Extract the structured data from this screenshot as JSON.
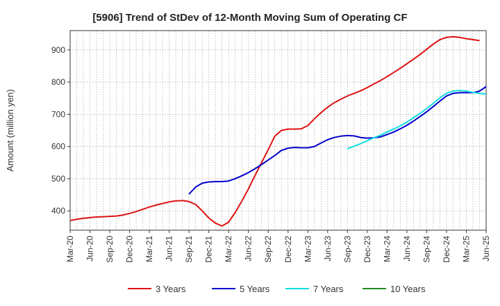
{
  "chart_data": {
    "type": "line",
    "title": "[5906]  Trend of StDev of 12-Month Moving Sum of Operating CF",
    "xlabel": "",
    "ylabel": "Amount (million yen)",
    "x_ticks": [
      "Mar-20",
      "Jun-20",
      "Sep-20",
      "Dec-20",
      "Mar-21",
      "Jun-21",
      "Sep-21",
      "Dec-21",
      "Mar-22",
      "Jun-22",
      "Sep-22",
      "Dec-22",
      "Mar-23",
      "Jun-23",
      "Sep-23",
      "Dec-23",
      "Mar-24",
      "Jun-24",
      "Sep-24",
      "Dec-24",
      "Mar-25",
      "Jun-25"
    ],
    "y_ticks": [
      400,
      500,
      600,
      700,
      800,
      900
    ],
    "xlim": [
      "Mar-20",
      "Jun-25"
    ],
    "ylim": [
      340,
      960
    ],
    "grid": true,
    "legend_position": "bottom",
    "series": [
      {
        "name": "3 Years",
        "color": "#dd1111",
        "points": [
          [
            "Mar-20",
            370
          ],
          [
            "Apr-20",
            374
          ],
          [
            "May-20",
            377
          ],
          [
            "Jun-20",
            379
          ],
          [
            "Jul-20",
            381
          ],
          [
            "Aug-20",
            382
          ],
          [
            "Sep-20",
            383
          ],
          [
            "Oct-20",
            384
          ],
          [
            "Nov-20",
            387
          ],
          [
            "Dec-20",
            392
          ],
          [
            "Jan-21",
            398
          ],
          [
            "Feb-21",
            405
          ],
          [
            "Mar-21",
            412
          ],
          [
            "Apr-21",
            418
          ],
          [
            "May-21",
            423
          ],
          [
            "Jun-21",
            428
          ],
          [
            "Jul-21",
            431
          ],
          [
            "Aug-21",
            432
          ],
          [
            "Sep-21",
            429
          ],
          [
            "Oct-21",
            420
          ],
          [
            "Nov-21",
            400
          ],
          [
            "Dec-21",
            378
          ],
          [
            "Jan-22",
            362
          ],
          [
            "Feb-22",
            353
          ],
          [
            "Mar-22",
            365
          ],
          [
            "Apr-22",
            395
          ],
          [
            "May-22",
            430
          ],
          [
            "Jun-22",
            468
          ],
          [
            "Jul-22",
            510
          ],
          [
            "Aug-22",
            550
          ],
          [
            "Sep-22",
            590
          ],
          [
            "Oct-22",
            632
          ],
          [
            "Nov-22",
            650
          ],
          [
            "Dec-22",
            654
          ],
          [
            "Jan-23",
            654
          ],
          [
            "Feb-23",
            655
          ],
          [
            "Mar-23",
            665
          ],
          [
            "Apr-23",
            686
          ],
          [
            "May-23",
            705
          ],
          [
            "Jun-23",
            722
          ],
          [
            "Jul-23",
            736
          ],
          [
            "Aug-23",
            747
          ],
          [
            "Sep-23",
            757
          ],
          [
            "Oct-23",
            765
          ],
          [
            "Nov-23",
            773
          ],
          [
            "Dec-23",
            783
          ],
          [
            "Jan-24",
            794
          ],
          [
            "Feb-24",
            805
          ],
          [
            "Mar-24",
            817
          ],
          [
            "Apr-24",
            830
          ],
          [
            "May-24",
            843
          ],
          [
            "Jun-24",
            857
          ],
          [
            "Jul-24",
            871
          ],
          [
            "Aug-24",
            886
          ],
          [
            "Sep-24",
            902
          ],
          [
            "Oct-24",
            918
          ],
          [
            "Nov-24",
            932
          ],
          [
            "Dec-24",
            939
          ],
          [
            "Jan-25",
            941
          ],
          [
            "Feb-25",
            939
          ],
          [
            "Mar-25",
            935
          ],
          [
            "Apr-25",
            932
          ],
          [
            "May-25",
            929
          ]
        ]
      },
      {
        "name": "5 Years",
        "color": "#0000cc",
        "points": [
          [
            "Sep-21",
            452
          ],
          [
            "Oct-21",
            474
          ],
          [
            "Nov-21",
            486
          ],
          [
            "Dec-21",
            490
          ],
          [
            "Jan-22",
            491
          ],
          [
            "Feb-22",
            491
          ],
          [
            "Mar-22",
            493
          ],
          [
            "Apr-22",
            500
          ],
          [
            "May-22",
            509
          ],
          [
            "Jun-22",
            519
          ],
          [
            "Jul-22",
            531
          ],
          [
            "Aug-22",
            544
          ],
          [
            "Sep-22",
            558
          ],
          [
            "Oct-22",
            572
          ],
          [
            "Nov-22",
            588
          ],
          [
            "Dec-22",
            595
          ],
          [
            "Jan-23",
            597
          ],
          [
            "Feb-23",
            596
          ],
          [
            "Mar-23",
            596
          ],
          [
            "Apr-23",
            600
          ],
          [
            "May-23",
            611
          ],
          [
            "Jun-23",
            621
          ],
          [
            "Jul-23",
            628
          ],
          [
            "Aug-23",
            632
          ],
          [
            "Sep-23",
            634
          ],
          [
            "Oct-23",
            633
          ],
          [
            "Nov-23",
            628
          ],
          [
            "Dec-23",
            626
          ],
          [
            "Jan-24",
            627
          ],
          [
            "Feb-24",
            630
          ],
          [
            "Mar-24",
            637
          ],
          [
            "Apr-24",
            645
          ],
          [
            "May-24",
            655
          ],
          [
            "Jun-24",
            666
          ],
          [
            "Jul-24",
            679
          ],
          [
            "Aug-24",
            693
          ],
          [
            "Sep-24",
            708
          ],
          [
            "Oct-24",
            724
          ],
          [
            "Nov-24",
            741
          ],
          [
            "Dec-24",
            757
          ],
          [
            "Jan-25",
            765
          ],
          [
            "Feb-25",
            767
          ],
          [
            "Mar-25",
            767
          ],
          [
            "Apr-25",
            767
          ],
          [
            "May-25",
            772
          ],
          [
            "Jun-25",
            786
          ]
        ]
      },
      {
        "name": "7 Years",
        "color": "#11dddd",
        "points": [
          [
            "Sep-23",
            593
          ],
          [
            "Oct-23",
            601
          ],
          [
            "Nov-23",
            609
          ],
          [
            "Dec-23",
            618
          ],
          [
            "Jan-24",
            627
          ],
          [
            "Feb-24",
            635
          ],
          [
            "Mar-24",
            645
          ],
          [
            "Apr-24",
            654
          ],
          [
            "May-24",
            664
          ],
          [
            "Jun-24",
            676
          ],
          [
            "Jul-24",
            689
          ],
          [
            "Aug-24",
            703
          ],
          [
            "Sep-24",
            718
          ],
          [
            "Oct-24",
            734
          ],
          [
            "Nov-24",
            751
          ],
          [
            "Dec-24",
            765
          ],
          [
            "Jan-25",
            772
          ],
          [
            "Feb-25",
            774
          ],
          [
            "Mar-25",
            772
          ],
          [
            "Apr-25",
            768
          ],
          [
            "May-25",
            765
          ],
          [
            "Jun-25",
            763
          ]
        ]
      },
      {
        "name": "10 Years",
        "color": "#228822",
        "points": []
      }
    ]
  }
}
